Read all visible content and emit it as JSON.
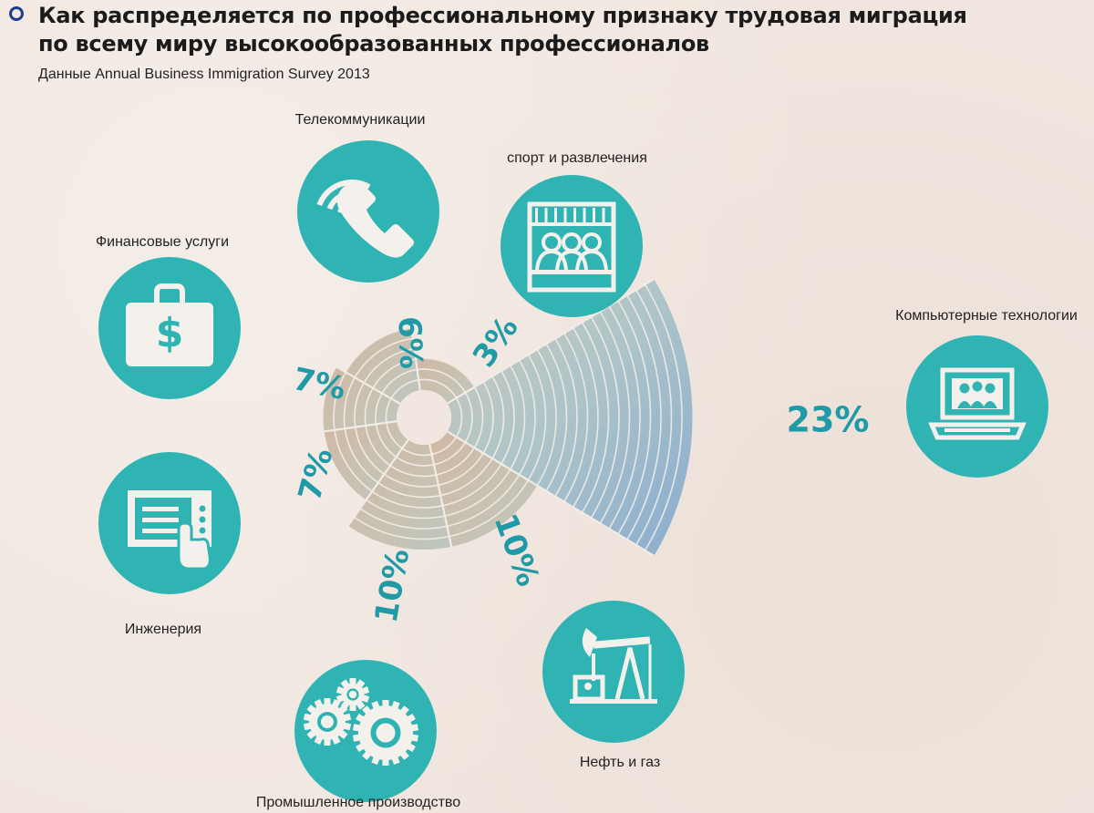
{
  "header": {
    "title_line1": "Как распределяется по профессиональному признаку трудовая миграция",
    "title_line2": "по всему миру высокообразованных профессионалов",
    "subtitle": "Данные Annual Business Immigration Survey 2013"
  },
  "colors": {
    "circle": "#2fb3b3",
    "icon": "#f4f1ec",
    "percent": "#1f9aa6",
    "ring_line": "#f2ece6"
  },
  "chart_data": {
    "type": "radial-bar",
    "title": "Как распределяется по профессиональному признаку трудовая миграция по всему миру высокообразованных профессионалов",
    "source": "Данные Annual Business Immigration Survey 2013",
    "categories": [
      "Компьютерные технологии",
      "Нефть и газ",
      "Промышленное производство",
      "Инженерия",
      "Финансовые услуги",
      "Телекоммуникации",
      "спорт и развлечения"
    ],
    "values": [
      23,
      10,
      10,
      7,
      7,
      6,
      3
    ],
    "labels": [
      "23%",
      "10%",
      "10%",
      "7%",
      "7%",
      "6%",
      "3%"
    ],
    "icons": [
      "laptop-people-icon",
      "oil-pump-icon",
      "gears-icon",
      "touchscreen-icon",
      "money-case-icon",
      "phone-icon",
      "audience-icon"
    ]
  }
}
